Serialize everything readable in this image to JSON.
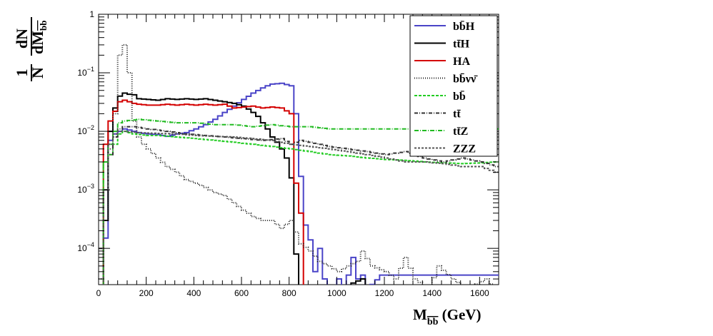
{
  "chart_data": {
    "type": "line",
    "style": "step-histogram",
    "x_axis": {
      "label_main": "M",
      "label_sub": "bb",
      "label_unit": " (GeV)",
      "range": [
        0,
        1680
      ],
      "ticks": [
        0,
        200,
        400,
        600,
        800,
        1000,
        1200,
        1400,
        1600
      ],
      "tick_labels": [
        "0",
        "200",
        "400",
        "600",
        "800",
        "1000",
        "1200",
        "1400",
        "1600"
      ]
    },
    "y_axis": {
      "scale": "log",
      "range": [
        2.4e-05,
        1
      ],
      "label_one": "1",
      "label_n": "N",
      "label_dn": "dN",
      "label_dm": "dM",
      "label_dm_sub": "bb",
      "ticks": [
        1,
        0.1,
        0.01,
        0.001,
        0.0001
      ],
      "tick_labels": [
        {
          "base": "1",
          "exp": ""
        },
        {
          "base": "10",
          "exp": "−1"
        },
        {
          "base": "10",
          "exp": "−2"
        },
        {
          "base": "10",
          "exp": "−3"
        },
        {
          "base": "10",
          "exp": "−4"
        }
      ]
    },
    "bin_width": 20,
    "series": [
      {
        "name": "bb̄H",
        "color": "#4a44c8",
        "dash": "",
        "points": [
          [
            0,
            1e-05
          ],
          [
            20,
            0.00015
          ],
          [
            40,
            0.007
          ],
          [
            60,
            0.009
          ],
          [
            80,
            0.01
          ],
          [
            100,
            0.011
          ],
          [
            120,
            0.0105
          ],
          [
            140,
            0.01
          ],
          [
            160,
            0.0095
          ],
          [
            200,
            0.009
          ],
          [
            240,
            0.0088
          ],
          [
            280,
            0.0082
          ],
          [
            320,
            0.009
          ],
          [
            360,
            0.0095
          ],
          [
            400,
            0.011
          ],
          [
            440,
            0.013
          ],
          [
            480,
            0.016
          ],
          [
            520,
            0.021
          ],
          [
            560,
            0.027
          ],
          [
            600,
            0.035
          ],
          [
            640,
            0.045
          ],
          [
            680,
            0.055
          ],
          [
            700,
            0.06
          ],
          [
            720,
            0.064
          ],
          [
            760,
            0.066
          ],
          [
            800,
            0.06
          ],
          [
            820,
            0.02
          ],
          [
            840,
            0.0017
          ],
          [
            860,
            0.00025
          ],
          [
            880,
            0.00014
          ],
          [
            900,
            4e-05
          ],
          [
            920,
            0.0001
          ],
          [
            940,
            3e-05
          ],
          [
            960,
            2e-05
          ],
          [
            980,
            2e-05
          ],
          [
            1000,
            3e-05
          ],
          [
            1020,
            2e-05
          ],
          [
            1040,
            3.5e-05
          ],
          [
            1060,
            7e-05
          ],
          [
            1080,
            3e-05
          ],
          [
            1100,
            3.5e-05
          ],
          [
            1120,
            2e-05
          ],
          [
            1180,
            3.5e-05
          ],
          [
            1260,
            3.5e-05
          ],
          [
            1340,
            3.5e-05
          ],
          [
            1420,
            3.5e-05
          ],
          [
            1500,
            3.5e-05
          ],
          [
            1560,
            3.5e-05
          ],
          [
            1600,
            3.5e-05
          ],
          [
            1640,
            3.5e-05
          ],
          [
            1660,
            3.5e-05
          ]
        ]
      },
      {
        "name": "tt̄H",
        "color": "#000000",
        "dash": "",
        "points": [
          [
            0,
            1e-05
          ],
          [
            20,
            0.0003
          ],
          [
            40,
            0.01
          ],
          [
            60,
            0.025
          ],
          [
            80,
            0.04
          ],
          [
            100,
            0.045
          ],
          [
            120,
            0.043
          ],
          [
            140,
            0.042
          ],
          [
            160,
            0.036
          ],
          [
            200,
            0.035
          ],
          [
            240,
            0.034
          ],
          [
            280,
            0.036
          ],
          [
            320,
            0.035
          ],
          [
            360,
            0.036
          ],
          [
            400,
            0.035
          ],
          [
            440,
            0.036
          ],
          [
            480,
            0.034
          ],
          [
            520,
            0.032
          ],
          [
            560,
            0.03
          ],
          [
            600,
            0.027
          ],
          [
            620,
            0.024
          ],
          [
            640,
            0.021
          ],
          [
            660,
            0.018
          ],
          [
            680,
            0.014
          ],
          [
            700,
            0.011
          ],
          [
            720,
            0.008
          ],
          [
            740,
            0.0065
          ],
          [
            760,
            0.005
          ],
          [
            780,
            0.0035
          ],
          [
            800,
            0.0016
          ],
          [
            820,
            8e-05
          ],
          [
            840,
            2e-05
          ],
          [
            880,
            1e-05
          ],
          [
            1000,
            2e-05
          ],
          [
            1100,
            3e-05
          ],
          [
            1120,
            1e-05
          ]
        ]
      },
      {
        "name": "HA",
        "color": "#d40000",
        "dash": "",
        "points": [
          [
            0,
            1e-05
          ],
          [
            20,
            0.006
          ],
          [
            40,
            0.015
          ],
          [
            60,
            0.022
          ],
          [
            80,
            0.032
          ],
          [
            100,
            0.034
          ],
          [
            120,
            0.032
          ],
          [
            140,
            0.03
          ],
          [
            160,
            0.029
          ],
          [
            200,
            0.028
          ],
          [
            240,
            0.028
          ],
          [
            280,
            0.029
          ],
          [
            320,
            0.028
          ],
          [
            360,
            0.029
          ],
          [
            400,
            0.028
          ],
          [
            440,
            0.029
          ],
          [
            480,
            0.028
          ],
          [
            520,
            0.029
          ],
          [
            560,
            0.025
          ],
          [
            600,
            0.026
          ],
          [
            640,
            0.027
          ],
          [
            680,
            0.025
          ],
          [
            720,
            0.026
          ],
          [
            760,
            0.025
          ],
          [
            800,
            0.02
          ],
          [
            820,
            0.0013
          ],
          [
            840,
            0.0004
          ],
          [
            860,
            2e-05
          ]
        ]
      },
      {
        "name": "bb̄νν̄",
        "color": "#222222",
        "dash": "1,2",
        "points": [
          [
            0,
            3e-05
          ],
          [
            20,
            0.0003
          ],
          [
            40,
            0.005
          ],
          [
            60,
            0.02
          ],
          [
            70,
            0.1
          ],
          [
            80,
            0.2
          ],
          [
            90,
            0.29
          ],
          [
            100,
            0.3
          ],
          [
            110,
            0.25
          ],
          [
            120,
            0.1
          ],
          [
            130,
            0.04
          ],
          [
            140,
            0.015
          ],
          [
            160,
            0.008
          ],
          [
            180,
            0.006
          ],
          [
            200,
            0.005
          ],
          [
            240,
            0.0035
          ],
          [
            280,
            0.0025
          ],
          [
            320,
            0.002
          ],
          [
            360,
            0.0015
          ],
          [
            400,
            0.0013
          ],
          [
            440,
            0.0011
          ],
          [
            480,
            0.0009
          ],
          [
            520,
            0.0008
          ],
          [
            560,
            0.0006
          ],
          [
            600,
            0.00045
          ],
          [
            640,
            0.00035
          ],
          [
            680,
            0.0003
          ],
          [
            720,
            0.0003
          ],
          [
            760,
            0.00022
          ],
          [
            800,
            0.0003
          ],
          [
            840,
            0.00012
          ],
          [
            880,
            9e-05
          ],
          [
            920,
            6e-05
          ],
          [
            960,
            5e-05
          ],
          [
            1000,
            4e-05
          ],
          [
            1040,
            5e-05
          ],
          [
            1080,
            6e-05
          ],
          [
            1100,
            9e-05
          ],
          [
            1140,
            5e-05
          ],
          [
            1200,
            4e-05
          ],
          [
            1240,
            3e-05
          ],
          [
            1280,
            7e-05
          ],
          [
            1320,
            3e-05
          ],
          [
            1380,
            2e-05
          ],
          [
            1420,
            5e-05
          ],
          [
            1480,
            3e-05
          ],
          [
            1540,
            2e-05
          ],
          [
            1620,
            3e-05
          ],
          [
            1660,
            2e-05
          ]
        ]
      },
      {
        "name": "bb̄",
        "color": "#22cc22",
        "dash": "4,2",
        "points": [
          [
            0,
            1e-05
          ],
          [
            20,
            0.003
          ],
          [
            40,
            0.004
          ],
          [
            60,
            0.006
          ],
          [
            80,
            0.009
          ],
          [
            100,
            0.01
          ],
          [
            140,
            0.009
          ],
          [
            200,
            0.0085
          ],
          [
            240,
            0.0085
          ],
          [
            320,
            0.008
          ],
          [
            400,
            0.0075
          ],
          [
            480,
            0.007
          ],
          [
            560,
            0.0065
          ],
          [
            640,
            0.006
          ],
          [
            720,
            0.0055
          ],
          [
            800,
            0.005
          ],
          [
            880,
            0.0045
          ],
          [
            960,
            0.004
          ],
          [
            1040,
            0.0038
          ],
          [
            1120,
            0.0035
          ],
          [
            1200,
            0.0033
          ],
          [
            1280,
            0.0032
          ],
          [
            1360,
            0.003
          ],
          [
            1440,
            0.0029
          ],
          [
            1520,
            0.0028
          ],
          [
            1600,
            0.0029
          ],
          [
            1660,
            0.003
          ]
        ]
      },
      {
        "name": "tt̄",
        "color": "#333333",
        "dash": "5,2,1,2",
        "points": [
          [
            0,
            0.0001
          ],
          [
            20,
            0.001
          ],
          [
            40,
            0.004
          ],
          [
            60,
            0.008
          ],
          [
            80,
            0.011
          ],
          [
            100,
            0.012
          ],
          [
            140,
            0.012
          ],
          [
            200,
            0.011
          ],
          [
            280,
            0.01
          ],
          [
            360,
            0.009
          ],
          [
            440,
            0.0085
          ],
          [
            520,
            0.008
          ],
          [
            600,
            0.0075
          ],
          [
            680,
            0.007
          ],
          [
            760,
            0.0075
          ],
          [
            800,
            0.006
          ],
          [
            840,
            0.007
          ],
          [
            880,
            0.0065
          ],
          [
            960,
            0.0055
          ],
          [
            1040,
            0.005
          ],
          [
            1120,
            0.0045
          ],
          [
            1200,
            0.004
          ],
          [
            1280,
            0.0045
          ],
          [
            1360,
            0.0035
          ],
          [
            1440,
            0.003
          ],
          [
            1520,
            0.0035
          ],
          [
            1600,
            0.003
          ],
          [
            1660,
            0.0025
          ]
        ]
      },
      {
        "name": "tt̄Z",
        "color": "#22bb22",
        "dash": "6,2,1,2",
        "points": [
          [
            0,
            2e-05
          ],
          [
            20,
            0.003
          ],
          [
            40,
            0.006
          ],
          [
            60,
            0.01
          ],
          [
            80,
            0.014
          ],
          [
            100,
            0.015
          ],
          [
            160,
            0.016
          ],
          [
            240,
            0.015
          ],
          [
            320,
            0.014
          ],
          [
            400,
            0.014
          ],
          [
            480,
            0.013
          ],
          [
            560,
            0.013
          ],
          [
            640,
            0.012
          ],
          [
            720,
            0.013
          ],
          [
            800,
            0.012
          ],
          [
            880,
            0.012
          ],
          [
            960,
            0.011
          ],
          [
            1040,
            0.011
          ],
          [
            1120,
            0.011
          ],
          [
            1200,
            0.011
          ],
          [
            1280,
            0.011
          ],
          [
            1360,
            0.011
          ],
          [
            1440,
            0.01
          ],
          [
            1520,
            0.011
          ],
          [
            1600,
            0.01
          ],
          [
            1660,
            0.011
          ]
        ]
      },
      {
        "name": "ZZZ",
        "color": "#555555",
        "dash": "3,2",
        "points": [
          [
            0,
            1e-05
          ],
          [
            20,
            0.001
          ],
          [
            40,
            0.006
          ],
          [
            60,
            0.009
          ],
          [
            80,
            0.01
          ],
          [
            100,
            0.01
          ],
          [
            160,
            0.0095
          ],
          [
            240,
            0.0092
          ],
          [
            320,
            0.009
          ],
          [
            400,
            0.0085
          ],
          [
            480,
            0.0082
          ],
          [
            560,
            0.008
          ],
          [
            640,
            0.0075
          ],
          [
            720,
            0.007
          ],
          [
            800,
            0.006
          ],
          [
            880,
            0.0055
          ],
          [
            960,
            0.005
          ],
          [
            1040,
            0.0045
          ],
          [
            1120,
            0.004
          ],
          [
            1200,
            0.0035
          ],
          [
            1280,
            0.003
          ],
          [
            1360,
            0.003
          ],
          [
            1440,
            0.0028
          ],
          [
            1520,
            0.0025
          ],
          [
            1600,
            0.0025
          ],
          [
            1660,
            0.002
          ]
        ]
      }
    ],
    "legend": {
      "position": "top-right",
      "entries": [
        {
          "label": "bb̄H",
          "color": "#4a44c8",
          "dash": ""
        },
        {
          "label": "tt̄H",
          "color": "#000000",
          "dash": ""
        },
        {
          "label": "HA",
          "color": "#d40000",
          "dash": ""
        },
        {
          "label": "bb̄νν̄",
          "color": "#222222",
          "dash": "1,2"
        },
        {
          "label": "bb̄",
          "color": "#22cc22",
          "dash": "4,2"
        },
        {
          "label": "tt̄",
          "color": "#333333",
          "dash": "5,2,1,2"
        },
        {
          "label": "tt̄Z",
          "color": "#22bb22",
          "dash": "6,2,1,2"
        },
        {
          "label": "ZZZ",
          "color": "#555555",
          "dash": "3,2"
        }
      ]
    }
  }
}
